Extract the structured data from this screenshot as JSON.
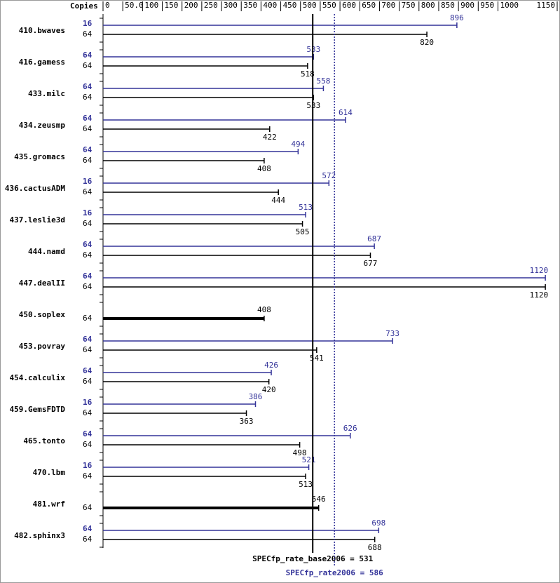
{
  "chart_data": {
    "type": "bar",
    "orientation": "horizontal",
    "copies_header": "Copies",
    "categories": [
      "410.bwaves",
      "416.gamess",
      "433.milc",
      "434.zeusmp",
      "435.gromacs",
      "436.cactusADM",
      "437.leslie3d",
      "444.namd",
      "447.dealII",
      "450.soplex",
      "453.povray",
      "454.calculix",
      "459.GemsFDTD",
      "465.tonto",
      "470.lbm",
      "481.wrf",
      "482.sphinx3"
    ],
    "xlim": [
      0,
      1150
    ],
    "xticks": [
      0,
      {
        "value": 50,
        "label": "50.0"
      },
      100,
      150,
      200,
      250,
      300,
      350,
      400,
      450,
      500,
      550,
      600,
      650,
      700,
      750,
      800,
      850,
      900,
      950,
      1000,
      1150
    ],
    "series": [
      {
        "color": "#333399",
        "copies": [
          16,
          64,
          64,
          64,
          64,
          16,
          16,
          64,
          64,
          null,
          64,
          64,
          16,
          64,
          16,
          null,
          64
        ],
        "values": [
          896,
          533,
          558,
          614,
          494,
          572,
          513,
          687,
          1120,
          null,
          733,
          426,
          386,
          626,
          521,
          null,
          698
        ]
      },
      {
        "color": "#000000",
        "copies": [
          64,
          64,
          64,
          64,
          64,
          64,
          64,
          64,
          64,
          64,
          64,
          64,
          64,
          64,
          64,
          64,
          64
        ],
        "values": [
          820,
          518,
          533,
          422,
          408,
          444,
          505,
          677,
          1120,
          408,
          541,
          420,
          363,
          498,
          513,
          546,
          688
        ]
      }
    ],
    "reference_lines": [
      {
        "label": "SPECfp_rate_base2006 = 531",
        "value": 531,
        "color": "#000000",
        "style": "solid"
      },
      {
        "label": "SPECfp_rate2006 = 586",
        "value": 586,
        "color": "#333399",
        "style": "dotted"
      }
    ]
  }
}
